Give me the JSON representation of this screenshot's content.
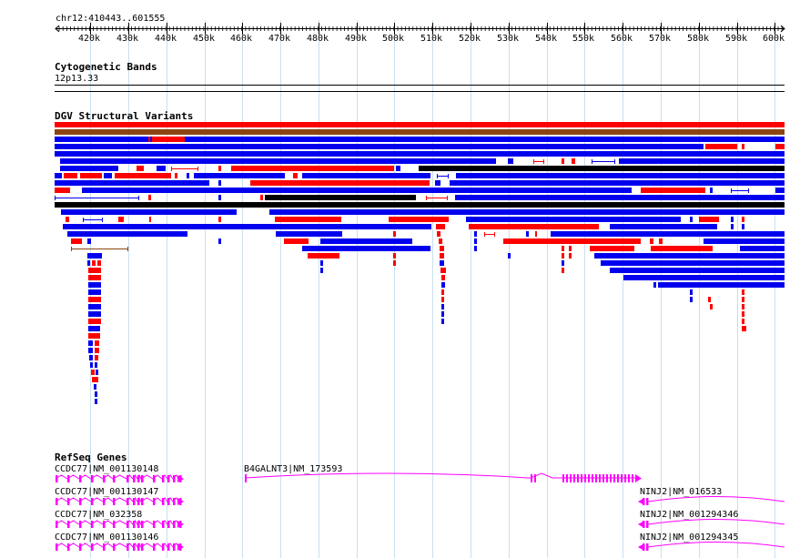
{
  "location": "chr12:410443..601555",
  "ruler": {
    "ticks": [
      "420k",
      "430k",
      "440k",
      "450k",
      "460k",
      "470k",
      "480k",
      "490k",
      "500k",
      "510k",
      "520k",
      "530k",
      "540k",
      "550k",
      "560k",
      "570k",
      "580k",
      "590k",
      "600k"
    ]
  },
  "tracks": {
    "cytoband": {
      "title": "Cytogenetic Bands",
      "band": "12p13.33"
    },
    "dgv": {
      "title": "DGV Structural Variants",
      "colors": {
        "gain": "#ff0000",
        "loss": "#0000ee",
        "both": "#8b4513",
        "complex": "#000000"
      }
    },
    "refseq": {
      "title": "RefSeq Genes",
      "color": "#ff00ff",
      "genes": [
        {
          "label": "CCDC77|NM_001130148"
        },
        {
          "label": "CCDC77|NM_001130147"
        },
        {
          "label": "CCDC77|NM_032358"
        },
        {
          "label": "CCDC77|NM_001130146"
        },
        {
          "label": "B4GALNT3|NM_173593"
        },
        {
          "label": "NINJ2|NM_016533"
        },
        {
          "label": "NINJ2|NM_001294346"
        },
        {
          "label": "NINJ2|NM_001294345"
        }
      ]
    }
  }
}
